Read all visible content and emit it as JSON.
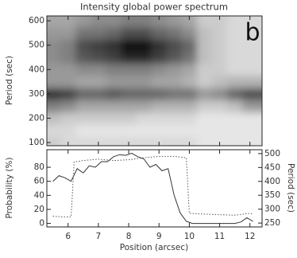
{
  "chart_data": [
    {
      "type": "heatmap",
      "title": "Intensity global power spectrum",
      "annotation": "b",
      "y_label": "Period (sec)",
      "x": [
        5.5,
        6,
        6.5,
        7,
        7.5,
        8,
        8.5,
        9,
        9.5,
        10,
        10.5,
        11,
        11.5,
        12
      ],
      "y": [
        100,
        150,
        200,
        250,
        300,
        350,
        400,
        450,
        500,
        550,
        600
      ],
      "z": [
        [
          20,
          15,
          15,
          15,
          15,
          15,
          15,
          15,
          15,
          15,
          10,
          10,
          10,
          10
        ],
        [
          15,
          15,
          10,
          10,
          10,
          10,
          10,
          10,
          10,
          10,
          10,
          10,
          10,
          10
        ],
        [
          25,
          20,
          20,
          20,
          20,
          20,
          15,
          15,
          15,
          15,
          10,
          10,
          10,
          10
        ],
        [
          50,
          45,
          35,
          35,
          35,
          35,
          35,
          30,
          30,
          30,
          20,
          20,
          25,
          40
        ],
        [
          80,
          75,
          60,
          60,
          65,
          60,
          60,
          60,
          55,
          55,
          40,
          45,
          60,
          70
        ],
        [
          40,
          40,
          35,
          35,
          40,
          40,
          40,
          35,
          35,
          30,
          20,
          25,
          30,
          30
        ],
        [
          40,
          40,
          45,
          45,
          50,
          50,
          50,
          45,
          40,
          35,
          20,
          20,
          15,
          15
        ],
        [
          45,
          50,
          65,
          70,
          75,
          85,
          85,
          75,
          65,
          55,
          25,
          20,
          15,
          15
        ],
        [
          45,
          50,
          70,
          75,
          80,
          95,
          95,
          80,
          70,
          60,
          25,
          20,
          15,
          15
        ],
        [
          40,
          40,
          55,
          55,
          60,
          70,
          70,
          60,
          55,
          45,
          25,
          20,
          15,
          15
        ],
        [
          35,
          35,
          40,
          45,
          45,
          50,
          50,
          45,
          40,
          35,
          20,
          20,
          15,
          15
        ]
      ],
      "zlim": [
        0,
        100
      ],
      "xlim": [
        5.3,
        12.4
      ],
      "xticks": [
        6,
        7,
        8,
        9,
        10,
        11,
        12
      ],
      "ylim": [
        87,
        620
      ],
      "yticks": [
        100,
        200,
        300,
        400,
        500,
        600
      ]
    },
    {
      "type": "line",
      "x_label": "Position (arcsec)",
      "y_label": "Probability (%)",
      "y2_label": "Period (sec)",
      "xlim": [
        5.3,
        12.4
      ],
      "xticks": [
        6,
        7,
        8,
        9,
        10,
        11,
        12
      ],
      "ylim": [
        -5,
        105
      ],
      "yticks": [
        0,
        20,
        40,
        60,
        80
      ],
      "y2lim": [
        236,
        514
      ],
      "y2ticks": [
        250,
        300,
        350,
        400,
        450,
        500
      ],
      "series": [
        {
          "color": "#333333",
          "style": "solid",
          "x": [
            5.5,
            5.7,
            5.9,
            6.1,
            6.3,
            6.5,
            6.7,
            6.9,
            7.1,
            7.3,
            7.5,
            7.7,
            7.9,
            8.1,
            8.3,
            8.5,
            8.7,
            8.9,
            9.1,
            9.3,
            9.5,
            9.7,
            9.9,
            10.1,
            10.5,
            11,
            11.5,
            11.7,
            11.9,
            12.1
          ],
          "values": [
            60,
            68,
            65,
            60,
            78,
            72,
            82,
            80,
            88,
            88,
            95,
            98,
            97,
            100,
            95,
            92,
            80,
            84,
            75,
            78,
            40,
            15,
            3,
            0,
            0,
            0,
            0,
            2,
            8,
            3
          ]
        },
        {
          "color": "#555555",
          "style": "dotted",
          "axis": "y2",
          "x": [
            5.5,
            5.8,
            6.1,
            6.2,
            6.5,
            7,
            7.5,
            8,
            8.5,
            9,
            9.5,
            9.9,
            10,
            10.5,
            11,
            11.5,
            12,
            12.1
          ],
          "values": [
            275,
            272,
            272,
            470,
            475,
            480,
            475,
            478,
            485,
            490,
            490,
            485,
            285,
            282,
            280,
            278,
            285,
            282
          ]
        }
      ]
    }
  ]
}
